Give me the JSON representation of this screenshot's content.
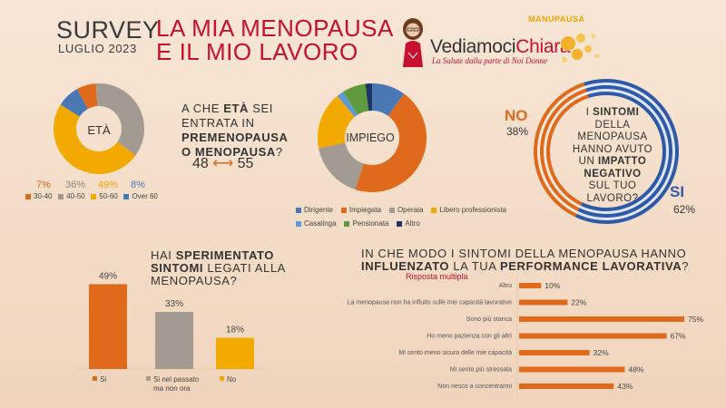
{
  "header": {
    "survey": "SURVEY",
    "date": "LUGLIO 2023",
    "title_line1": "LA MIA MENOPAUSA",
    "title_line2": "E IL MIO LAVORO"
  },
  "brand": {
    "name_part1": "Vediamoci",
    "name_part2": "Chiara",
    "tagline": "La Salute dalla parte di Noi Donne",
    "sub": "MANUPAUSA"
  },
  "age": {
    "question_pre": "A CHE ",
    "question_bold1": "ETÀ",
    "question_mid": " SEI ENTRATA IN ",
    "question_bold2": "PREMENOPAUSA O MENOPAUSA",
    "question_post": "?",
    "range_from": "48",
    "range_arrow": "⟷",
    "range_to": "55"
  },
  "ring": {
    "pre": "I ",
    "bold1": "SINTOMI",
    "mid": " DELLA MENOPAUSA HANNO AVUTO UN ",
    "bold2": "IMPATTO NEGATIVO",
    "post": " SUL TUO LAVORO?",
    "no_label": "NO",
    "no_pct": "38%",
    "si_label": "SI",
    "si_pct": "62%"
  },
  "experience": {
    "q_pre": "HAI ",
    "q_bold1": "SPERIMENTATO SINTOMI",
    "q_post": " LEGATI ALLA MENOPAUSA?"
  },
  "performance": {
    "q_pre": "IN CHE MODO I SINTOMI DELLA MENOPAUSA HANNO ",
    "q_bold1": "INFLUENZATO",
    "q_mid": " LA TUA ",
    "q_bold2": "PERFORMANCE LAVORATIVA",
    "q_post": "?",
    "note": "Risposta multipla"
  },
  "colors": {
    "orange": "#e06a1b",
    "gray": "#a39a92",
    "yellow": "#f2a900",
    "blue": "#4a78b5",
    "green": "#5f9b3e",
    "navy": "#1f3664",
    "accent_red": "#c8102e"
  },
  "chart_data": [
    {
      "type": "pie",
      "title": "ETÀ",
      "categories": [
        "30-40",
        "40-50",
        "50-60",
        "Over 60"
      ],
      "values": [
        7,
        36,
        49,
        8
      ],
      "value_labels": [
        "7%",
        "36%",
        "49%",
        "8%"
      ],
      "colors": [
        "#e06a1b",
        "#a39a92",
        "#f2a900",
        "#4a78b5"
      ],
      "legend": "bottom"
    },
    {
      "type": "pie",
      "title": "IMPIEGO",
      "categories": [
        "Dirigente",
        "Impiegata",
        "Operaia",
        "Libero professionista",
        "Casalinga",
        "Pensionata",
        "Altro"
      ],
      "values": [
        10,
        45,
        17,
        17,
        2,
        7,
        2
      ],
      "colors": [
        "#4a78b5",
        "#e06a1b",
        "#a39a92",
        "#f2a900",
        "#5c9bd6",
        "#5f9b3e",
        "#1f3664"
      ],
      "legend": "bottom"
    },
    {
      "type": "pie",
      "categories": [
        "NO",
        "SI"
      ],
      "values": [
        38,
        62
      ],
      "colors": [
        "#e06a1b",
        "#2e5aa8"
      ]
    },
    {
      "type": "bar",
      "categories": [
        "Si",
        "Si nel passato ma non ora",
        "No"
      ],
      "values": [
        49,
        33,
        18
      ],
      "value_labels": [
        "49%",
        "33%",
        "18%"
      ],
      "colors": [
        "#e06a1b",
        "#a39a92",
        "#f2a900"
      ],
      "ylim": [
        0,
        55
      ],
      "legend": "bottom"
    },
    {
      "type": "bar",
      "orientation": "horizontal",
      "categories": [
        "Altro",
        "La menopausa non ha influito sulle mie capacità lavorative",
        "Sono più stanca",
        "Ho meno pazienza con gli altri",
        "Mi sento meno sicura delle mie capacità",
        "Mi sento più stressata",
        "Non riesco a concentrarmi"
      ],
      "values": [
        10,
        22,
        75,
        67,
        32,
        48,
        43
      ],
      "value_labels": [
        "10%",
        "22%",
        "75%",
        "67%",
        "32%",
        "48%",
        "43%"
      ],
      "xlim": [
        0,
        75
      ]
    }
  ]
}
